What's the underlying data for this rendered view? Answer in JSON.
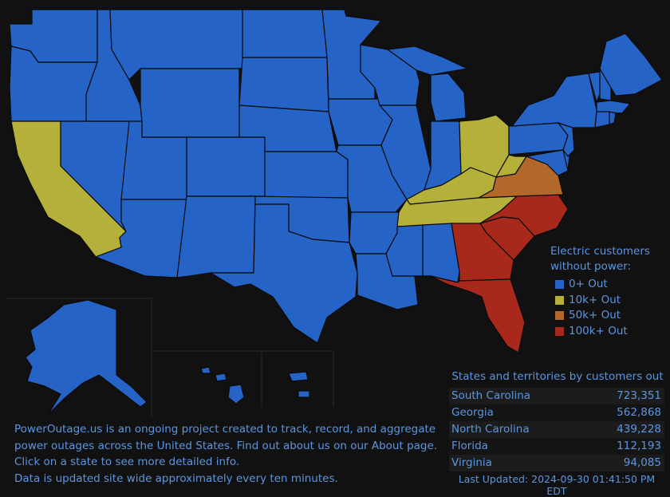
{
  "legend": {
    "title_line1": "Electric customers",
    "title_line2": "without power:",
    "items": [
      {
        "label": "0+ Out",
        "color": "#2563c7"
      },
      {
        "label": "10k+ Out",
        "color": "#b5b03a"
      },
      {
        "label": "50k+ Out",
        "color": "#b3682b"
      },
      {
        "label": "100k+ Out",
        "color": "#a8281b"
      }
    ]
  },
  "table": {
    "title": "States and territories by customers out",
    "rows": [
      {
        "state": "South Carolina",
        "customers": "723,351"
      },
      {
        "state": "Georgia",
        "customers": "562,868"
      },
      {
        "state": "North Carolina",
        "customers": "439,228"
      },
      {
        "state": "Florida",
        "customers": "112,193"
      },
      {
        "state": "Virginia",
        "customers": "94,085"
      }
    ],
    "last_updated": "Last Updated: 2024-09-30 01:41:50 PM EDT"
  },
  "info": {
    "line1_link": "PowerOutage.us",
    "line1_rest": " is an ongoing project created to track, record, and aggregate",
    "line2_pre": "power outages across the United States. Find out about us on our ",
    "line2_link": "About",
    "line2_post": " page.",
    "line3": "Click on a state to see more detailed info.",
    "line4": "Data is updated site wide approximately every ten minutes."
  },
  "colors": {
    "blue": "#2563c7",
    "yellow": "#b5b03a",
    "orange": "#b3682b",
    "red": "#a8281b",
    "text": "#5b96e0"
  }
}
